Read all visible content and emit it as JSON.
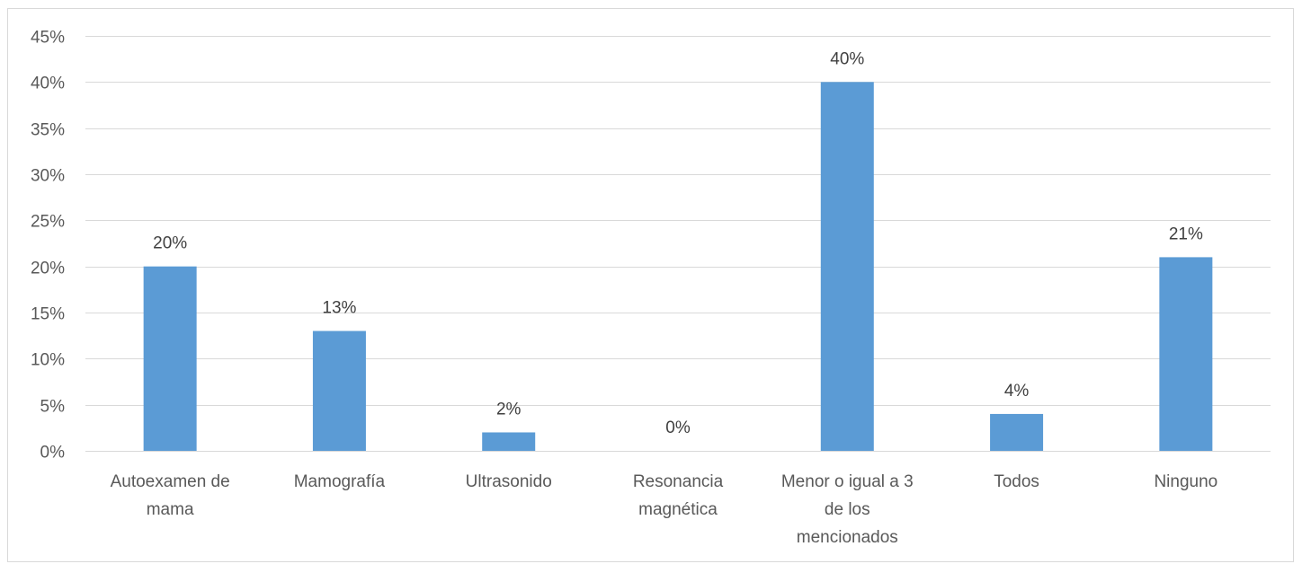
{
  "chart_data": {
    "type": "bar",
    "title": "",
    "xlabel": "",
    "ylabel": "",
    "categories": [
      [
        "Autoexamen de",
        "mama"
      ],
      [
        "Mamografía"
      ],
      [
        "Ultrasonido"
      ],
      [
        "Resonancia",
        "magnética"
      ],
      [
        "Menor o igual a 3",
        "de los",
        "mencionados"
      ],
      [
        "Todos"
      ],
      [
        "Ninguno"
      ]
    ],
    "values": [
      20,
      13,
      2,
      0,
      40,
      4,
      21
    ],
    "data_labels": [
      "20%",
      "13%",
      "2%",
      "0%",
      "40%",
      "4%",
      "21%"
    ],
    "ylim": [
      0,
      45
    ],
    "yticks": [
      0,
      5,
      10,
      15,
      20,
      25,
      30,
      35,
      40,
      45
    ],
    "ytick_labels": [
      "0%",
      "5%",
      "10%",
      "15%",
      "20%",
      "25%",
      "30%",
      "35%",
      "40%",
      "45%"
    ],
    "grid": true,
    "legend": "none",
    "bar_color": "#5b9bd5",
    "grid_color": "#d9d9d9"
  }
}
